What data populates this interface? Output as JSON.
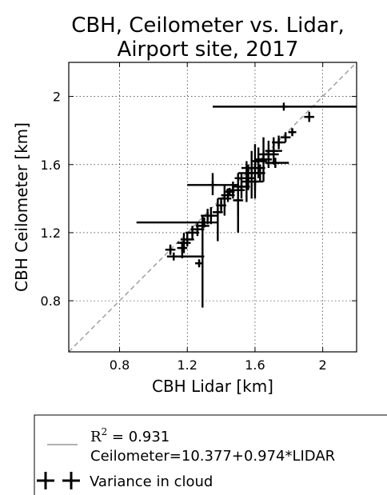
{
  "chart_data": {
    "type": "scatter",
    "title": [
      "CBH, Ceilometer vs. Lidar,",
      "Airport site, 2017"
    ],
    "xlabel": "CBH Lidar [km]",
    "ylabel": "CBH Ceilometer [km]",
    "xlim": [
      0.5,
      2.2
    ],
    "ylim": [
      0.5,
      2.2
    ],
    "xticks": [
      0.8,
      1.2,
      1.6,
      2.0
    ],
    "xtick_labels": [
      "0.8",
      "1.2",
      "1.6",
      "2"
    ],
    "yticks": [
      0.8,
      1.2,
      1.6,
      2.0
    ],
    "ytick_labels": [
      "0.8",
      "1.2",
      "1.6",
      "2"
    ],
    "grid": true,
    "grid_style": "dotted",
    "reference_line": {
      "type": "1:1",
      "color": "#999999",
      "style": "dashed"
    },
    "series": [
      {
        "name": "Variance in cloud",
        "marker": "+",
        "color": "#000000",
        "points": [
          {
            "x": 1.77,
            "y": 1.94,
            "xlo": 1.35,
            "xhi": 2.2,
            "ylo": 1.93,
            "yhi": 1.95
          },
          {
            "x": 1.92,
            "y": 1.88,
            "xlo": 1.89,
            "xhi": 1.95,
            "ylo": 1.85,
            "yhi": 1.91
          },
          {
            "x": 1.82,
            "y": 1.79,
            "xlo": 1.8,
            "xhi": 1.84,
            "ylo": 1.77,
            "yhi": 1.81
          },
          {
            "x": 1.78,
            "y": 1.76,
            "xlo": 1.75,
            "xhi": 1.81,
            "ylo": 1.73,
            "yhi": 1.79
          },
          {
            "x": 1.74,
            "y": 1.73,
            "xlo": 1.7,
            "xhi": 1.78,
            "ylo": 1.69,
            "yhi": 1.77
          },
          {
            "x": 1.71,
            "y": 1.68,
            "xlo": 1.66,
            "xhi": 1.76,
            "ylo": 1.6,
            "yhi": 1.76
          },
          {
            "x": 1.72,
            "y": 1.61,
            "xlo": 1.66,
            "xhi": 1.8,
            "ylo": 1.58,
            "yhi": 1.64
          },
          {
            "x": 1.68,
            "y": 1.66,
            "xlo": 1.62,
            "xhi": 1.74,
            "ylo": 1.58,
            "yhi": 1.74
          },
          {
            "x": 1.65,
            "y": 1.63,
            "xlo": 1.6,
            "xhi": 1.7,
            "ylo": 1.5,
            "yhi": 1.76
          },
          {
            "x": 1.62,
            "y": 1.62,
            "xlo": 1.58,
            "xhi": 1.67,
            "ylo": 1.52,
            "yhi": 1.7
          },
          {
            "x": 1.6,
            "y": 1.58,
            "xlo": 1.52,
            "xhi": 1.66,
            "ylo": 1.45,
            "yhi": 1.72
          },
          {
            "x": 1.58,
            "y": 1.55,
            "xlo": 1.5,
            "xhi": 1.63,
            "ylo": 1.4,
            "yhi": 1.68
          },
          {
            "x": 1.6,
            "y": 1.5,
            "xlo": 1.55,
            "xhi": 1.65,
            "ylo": 1.4,
            "yhi": 1.6
          },
          {
            "x": 1.56,
            "y": 1.52,
            "xlo": 1.48,
            "xhi": 1.6,
            "ylo": 1.45,
            "yhi": 1.6
          },
          {
            "x": 1.55,
            "y": 1.5,
            "xlo": 1.52,
            "xhi": 1.58,
            "ylo": 1.38,
            "yhi": 1.62
          },
          {
            "x": 1.52,
            "y": 1.47,
            "xlo": 1.47,
            "xhi": 1.57,
            "ylo": 1.4,
            "yhi": 1.55
          },
          {
            "x": 1.5,
            "y": 1.45,
            "xlo": 1.46,
            "xhi": 1.54,
            "ylo": 1.3,
            "yhi": 1.55
          },
          {
            "x": 1.5,
            "y": 1.39,
            "xlo": 1.47,
            "xhi": 1.53,
            "ylo": 1.2,
            "yhi": 1.46
          },
          {
            "x": 1.47,
            "y": 1.45,
            "xlo": 1.43,
            "xhi": 1.51,
            "ylo": 1.4,
            "yhi": 1.5
          },
          {
            "x": 1.44,
            "y": 1.42,
            "xlo": 1.4,
            "xhi": 1.48,
            "ylo": 1.38,
            "yhi": 1.46
          },
          {
            "x": 1.42,
            "y": 1.4,
            "xlo": 1.38,
            "xhi": 1.46,
            "ylo": 1.3,
            "yhi": 1.48
          },
          {
            "x": 1.4,
            "y": 1.36,
            "xlo": 1.37,
            "xhi": 1.43,
            "ylo": 1.32,
            "yhi": 1.4
          },
          {
            "x": 1.38,
            "y": 1.32,
            "xlo": 1.35,
            "xhi": 1.41,
            "ylo": 1.15,
            "yhi": 1.4
          },
          {
            "x": 1.35,
            "y": 1.48,
            "xlo": 1.2,
            "xhi": 1.5,
            "ylo": 1.42,
            "yhi": 1.55
          },
          {
            "x": 1.34,
            "y": 1.3,
            "xlo": 1.3,
            "xhi": 1.38,
            "ylo": 1.25,
            "yhi": 1.35
          },
          {
            "x": 1.32,
            "y": 1.3,
            "xlo": 1.28,
            "xhi": 1.36,
            "ylo": 1.25,
            "yhi": 1.34
          },
          {
            "x": 1.3,
            "y": 1.26,
            "xlo": 0.9,
            "xhi": 1.38,
            "ylo": 1.23,
            "yhi": 1.29
          },
          {
            "x": 1.29,
            "y": 1.24,
            "xlo": 1.25,
            "xhi": 1.33,
            "ylo": 0.76,
            "yhi": 1.3
          },
          {
            "x": 1.26,
            "y": 1.22,
            "xlo": 1.22,
            "xhi": 1.3,
            "ylo": 1.18,
            "yhi": 1.26
          },
          {
            "x": 1.23,
            "y": 1.2,
            "xlo": 1.19,
            "xhi": 1.27,
            "ylo": 1.16,
            "yhi": 1.24
          },
          {
            "x": 1.2,
            "y": 1.16,
            "xlo": 1.16,
            "xhi": 1.24,
            "ylo": 1.12,
            "yhi": 1.2
          },
          {
            "x": 1.18,
            "y": 1.14,
            "xlo": 1.14,
            "xhi": 1.22,
            "ylo": 1.08,
            "yhi": 1.2
          },
          {
            "x": 1.17,
            "y": 1.11,
            "xlo": 1.14,
            "xhi": 1.2,
            "ylo": 1.05,
            "yhi": 1.15
          },
          {
            "x": 1.1,
            "y": 1.1,
            "xlo": 1.07,
            "xhi": 1.13,
            "ylo": 1.07,
            "yhi": 1.13
          },
          {
            "x": 1.12,
            "y": 1.06,
            "xlo": 1.08,
            "xhi": 1.3,
            "ylo": 1.04,
            "yhi": 1.08
          },
          {
            "x": 1.27,
            "y": 1.02,
            "xlo": 1.25,
            "xhi": 1.29,
            "ylo": 1.0,
            "yhi": 1.04
          },
          {
            "x": 1.45,
            "y": 1.44,
            "xlo": 1.42,
            "xhi": 1.48,
            "ylo": 1.42,
            "yhi": 1.46
          },
          {
            "x": 1.63,
            "y": 1.55,
            "xlo": 1.6,
            "xhi": 1.66,
            "ylo": 1.5,
            "yhi": 1.6
          }
        ]
      }
    ]
  },
  "legend": {
    "placement": "bottom",
    "r2_prefix": "R",
    "r2_exponent": "2",
    "r2_value": " = 0.931",
    "fit_label": "Ceilometer=10.377+0.974*LIDAR",
    "variance_label": "Variance in cloud",
    "fit_line_color": "#999999"
  }
}
